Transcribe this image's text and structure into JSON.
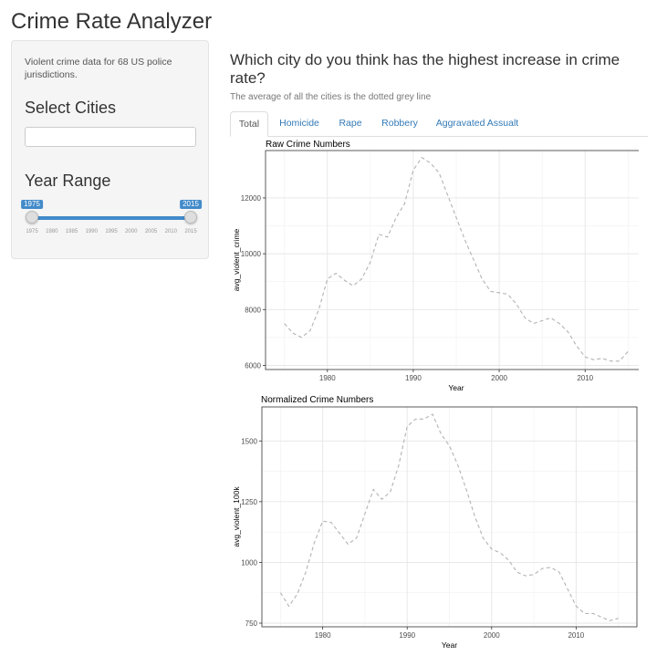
{
  "app": {
    "title": "Crime Rate Analyzer"
  },
  "sidebar": {
    "description": "Violent crime data for 68 US police jurisdictions.",
    "select_cities_label": "Select Cities",
    "city_input_value": "",
    "year_range_label": "Year Range",
    "slider": {
      "min": 1975,
      "max": 2015,
      "selected_from": 1975,
      "selected_to": 2015,
      "from_label": "1975",
      "to_label": "2015",
      "ticks": [
        "1975",
        "1980",
        "1985",
        "1990",
        "1995",
        "2000",
        "2005",
        "2010",
        "2015"
      ],
      "accent_color": "#428bca"
    }
  },
  "main": {
    "question": "Which city do you think has the highest increase in crime rate?",
    "subtitle": "The average of all the cities is the dotted grey line",
    "tabs": [
      {
        "label": "Total",
        "active": true
      },
      {
        "label": "Homicide",
        "active": false
      },
      {
        "label": "Rape",
        "active": false
      },
      {
        "label": "Robbery",
        "active": false
      },
      {
        "label": "Aggravated Assualt",
        "active": false
      }
    ]
  },
  "chart_data": [
    {
      "type": "line",
      "title": "Raw Crime Numbers",
      "xlabel": "Year",
      "ylabel": "avg_violent_crime",
      "xlim": [
        1972.8,
        2017.2
      ],
      "ylim": [
        5850,
        13700
      ],
      "xticks": [
        1980,
        1990,
        2000,
        2010
      ],
      "yticks": [
        6000,
        8000,
        10000,
        12000
      ],
      "grid": true,
      "line_style": "dashed",
      "line_color": "#b3b3b3",
      "series": [
        {
          "x": [
            1975,
            1976,
            1977,
            1978,
            1979,
            1980,
            1981,
            1982,
            1983,
            1984,
            1985,
            1986,
            1987,
            1988,
            1989,
            1990,
            1991,
            1992,
            1993,
            1994,
            1995,
            1996,
            1997,
            1998,
            1999,
            2000,
            2001,
            2002,
            2003,
            2004,
            2005,
            2006,
            2007,
            2008,
            2009,
            2010,
            2011,
            2012,
            2013,
            2014,
            2015
          ],
          "values": [
            7500,
            7150,
            7000,
            7250,
            8000,
            9100,
            9300,
            9050,
            8850,
            9100,
            9700,
            10700,
            10600,
            11300,
            11800,
            13000,
            13450,
            13250,
            12900,
            12100,
            11300,
            10500,
            9800,
            9100,
            8650,
            8600,
            8550,
            8200,
            7700,
            7500,
            7600,
            7700,
            7500,
            7200,
            6700,
            6300,
            6200,
            6250,
            6150,
            6150,
            6500
          ]
        }
      ]
    },
    {
      "type": "line",
      "title": "Normalized Crime Numbers",
      "xlabel": "Year",
      "ylabel": "avg_violent_100k",
      "xlim": [
        1972.8,
        2017.2
      ],
      "ylim": [
        735,
        1640
      ],
      "xticks": [
        1980,
        1990,
        2000,
        2010
      ],
      "yticks": [
        750,
        1000,
        1250,
        1500
      ],
      "grid": true,
      "line_style": "dashed",
      "line_color": "#b3b3b3",
      "series": [
        {
          "x": [
            1975,
            1976,
            1977,
            1978,
            1979,
            1980,
            1981,
            1982,
            1983,
            1984,
            1985,
            1986,
            1987,
            1988,
            1989,
            1990,
            1991,
            1992,
            1993,
            1994,
            1995,
            1996,
            1997,
            1998,
            1999,
            2000,
            2001,
            2002,
            2003,
            2004,
            2005,
            2006,
            2007,
            2008,
            2009,
            2010,
            2011,
            2012,
            2013,
            2014,
            2015
          ],
          "values": [
            875,
            820,
            870,
            960,
            1080,
            1170,
            1165,
            1120,
            1075,
            1100,
            1200,
            1300,
            1260,
            1290,
            1400,
            1560,
            1590,
            1590,
            1610,
            1530,
            1480,
            1400,
            1300,
            1190,
            1100,
            1055,
            1040,
            1010,
            960,
            945,
            950,
            975,
            980,
            960,
            890,
            820,
            790,
            790,
            775,
            760,
            770
          ]
        }
      ]
    }
  ]
}
